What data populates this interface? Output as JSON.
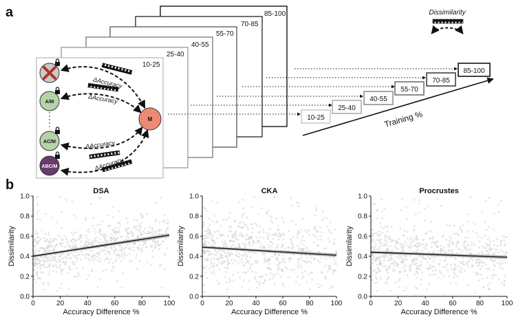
{
  "panel_a": {
    "label": "a",
    "stack_labels": [
      "10-25",
      "25-40",
      "40-55",
      "55-70",
      "70-85",
      "85-100"
    ],
    "nodes": {
      "top": "",
      "am": "A/M",
      "acm": "AC/M",
      "abcm": "ABC/M",
      "m": "M"
    },
    "delta_label": "ΔAccuracy",
    "dissimilarity_label": "Dissimilarity",
    "training_label": "Training %",
    "step_labels": [
      "10-25",
      "25-40",
      "40-55",
      "55-70",
      "70-85",
      "85-100"
    ],
    "colors": {
      "green": "#b5d3a8",
      "purple": "#6b3a6b",
      "salmon": "#ee8a74",
      "grey": "#c9c9c9",
      "cross": "#b0312c"
    }
  },
  "panel_b": {
    "label": "b",
    "x_label": "Accuracy Difference %",
    "y_label": "Dissimilarity"
  },
  "chart_data": [
    {
      "type": "scatter",
      "title": "DSA",
      "xlabel": "Accuracy Difference %",
      "ylabel": "Dissimilarity",
      "xlim": [
        0,
        100
      ],
      "ylim": [
        0.0,
        1.0
      ],
      "xticks": [
        0,
        20,
        40,
        60,
        80,
        100
      ],
      "yticks": [
        0.0,
        0.2,
        0.4,
        0.6,
        0.8,
        1.0
      ],
      "fit_line": {
        "x": [
          0,
          100
        ],
        "y": [
          0.4,
          0.61
        ]
      },
      "point_cloud": {
        "center_y": 0.42,
        "spread_y": 0.12,
        "density": "high at low x"
      }
    },
    {
      "type": "scatter",
      "title": "CKA",
      "xlabel": "Accuracy Difference %",
      "ylabel": "Dissimilarity",
      "xlim": [
        0,
        100
      ],
      "ylim": [
        0.0,
        1.0
      ],
      "xticks": [
        0,
        20,
        40,
        60,
        80,
        100
      ],
      "yticks": [
        0.0,
        0.2,
        0.4,
        0.6,
        0.8,
        1.0
      ],
      "fit_line": {
        "x": [
          0,
          100
        ],
        "y": [
          0.49,
          0.41
        ]
      },
      "point_cloud": {
        "center_y": 0.45,
        "spread_y": 0.16,
        "density": "high at low x"
      }
    },
    {
      "type": "scatter",
      "title": "Procrustes",
      "xlabel": "Accuracy Difference %",
      "ylabel": "Dissimilarity",
      "xlim": [
        0,
        100
      ],
      "ylim": [
        0.0,
        1.0
      ],
      "xticks": [
        0,
        20,
        40,
        60,
        80,
        100
      ],
      "yticks": [
        0.0,
        0.2,
        0.4,
        0.6,
        0.8,
        1.0
      ],
      "fit_line": {
        "x": [
          0,
          100
        ],
        "y": [
          0.44,
          0.39
        ]
      },
      "point_cloud": {
        "center_y": 0.42,
        "spread_y": 0.14,
        "density": "high at low x"
      }
    }
  ]
}
